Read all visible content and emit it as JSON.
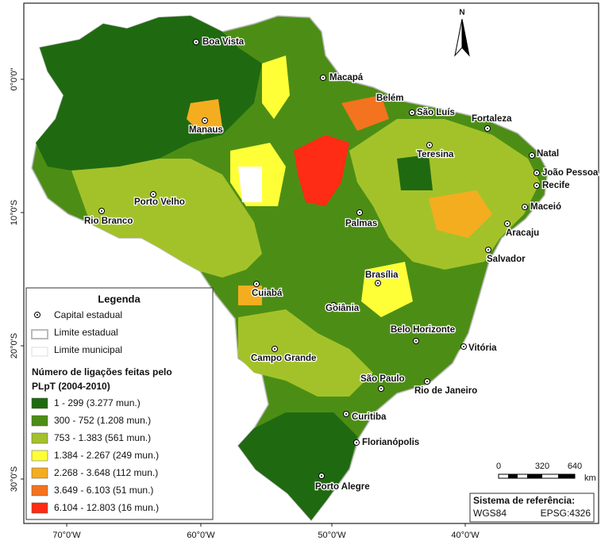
{
  "map": {
    "north": "N",
    "lat_labels": [
      "0°0'0\"",
      "10°0'S",
      "20°0'S",
      "30°0'S"
    ],
    "lon_labels": [
      "70°0'W",
      "60°0'W",
      "50°0'W",
      "40°0'W"
    ],
    "cities": [
      "Boa Vista",
      "Macapá",
      "Belém",
      "São Luís",
      "Fortaleza",
      "Manaus",
      "Teresina",
      "Natal",
      "João Pessoa",
      "Recife",
      "Porto Velho",
      "Rio Branco",
      "Palmas",
      "Maceió",
      "Aracaju",
      "Salvador",
      "Brasília",
      "Cuiabá",
      "Goiânia",
      "Belo Horizonte",
      "Vitória",
      "Campo Grande",
      "São Paulo",
      "Rio de Janeiro",
      "Curitiba",
      "Florianópolis",
      "Porto Alegre"
    ]
  },
  "legend": {
    "title": "Legenda",
    "items": [
      "Capital estadual",
      "Limite estadual",
      "Limite municipal"
    ],
    "class_title": [
      "Número de ligações feitas pelo",
      "PLpT (2004-2010)"
    ],
    "classes": [
      {
        "label": "1 - 299 (3.277 mun.)",
        "color": "#1f6a10"
      },
      {
        "label": "300 - 752 (1.208 mun.)",
        "color": "#4c8e15"
      },
      {
        "label": "753 - 1.383 (561 mun.)",
        "color": "#a3c22a"
      },
      {
        "label": "1.384 - 2.267 (249 mun.)",
        "color": "#ffff38"
      },
      {
        "label": "2.268 - 3.648 (112 mun.)",
        "color": "#f5ad20"
      },
      {
        "label": "3.649 - 6.103 (51 mun.)",
        "color": "#f4731e"
      },
      {
        "label": "6.104 - 12.803 (16 mun.)",
        "color": "#fe2b15"
      }
    ]
  },
  "scale": {
    "labels": [
      "0",
      "320",
      "640",
      "km"
    ]
  },
  "reference": {
    "title": "Sistema de referência:",
    "datum": "WGS84",
    "epsg": "EPSG:4326"
  }
}
